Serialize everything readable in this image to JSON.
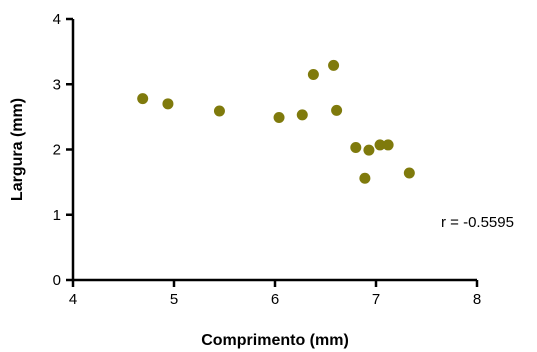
{
  "chart_data": {
    "type": "scatter",
    "title": "",
    "xlabel": "Comprimento (mm)",
    "ylabel": "Largura (mm)",
    "xlim": [
      4,
      8
    ],
    "ylim": [
      0,
      4
    ],
    "xticks": [
      4,
      5,
      6,
      7,
      8
    ],
    "yticks": [
      0,
      1,
      2,
      3,
      4
    ],
    "xtick_labels": [
      "4",
      "5",
      "6",
      "7",
      "8"
    ],
    "ytick_labels": [
      "0",
      "1",
      "2",
      "3",
      "4"
    ],
    "grid": false,
    "point_color": "#7f7a0c",
    "points": [
      {
        "x": 4.69,
        "y": 2.78
      },
      {
        "x": 4.94,
        "y": 2.7
      },
      {
        "x": 5.45,
        "y": 2.59
      },
      {
        "x": 6.04,
        "y": 2.49
      },
      {
        "x": 6.27,
        "y": 2.53
      },
      {
        "x": 6.38,
        "y": 3.15
      },
      {
        "x": 6.58,
        "y": 3.29
      },
      {
        "x": 6.61,
        "y": 2.6
      },
      {
        "x": 6.8,
        "y": 2.03
      },
      {
        "x": 6.93,
        "y": 1.99
      },
      {
        "x": 6.89,
        "y": 1.56
      },
      {
        "x": 7.04,
        "y": 2.07
      },
      {
        "x": 7.12,
        "y": 2.07
      },
      {
        "x": 7.33,
        "y": 1.64
      }
    ],
    "annotation": "r = -0.5595"
  }
}
